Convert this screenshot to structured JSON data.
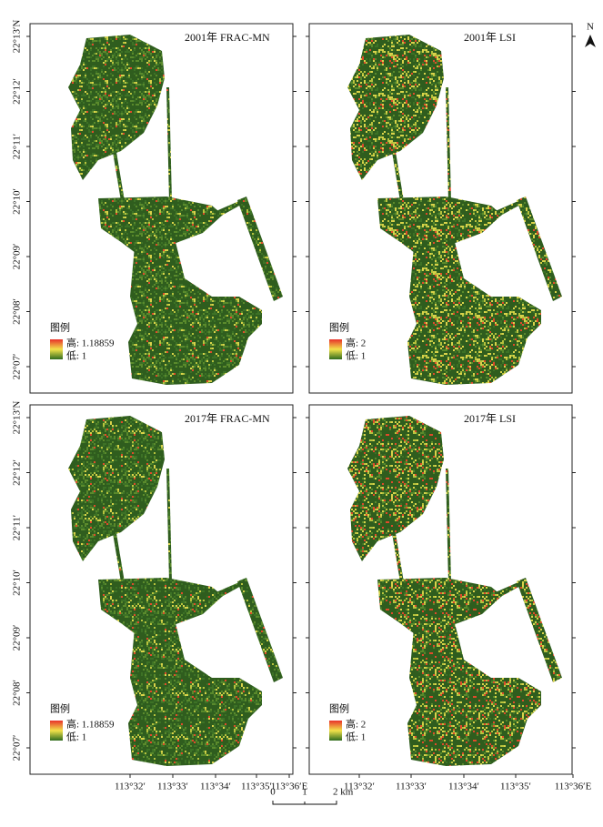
{
  "north_arrow": "N",
  "panels": [
    {
      "title": "2001年 FRAC-MN",
      "legend": {
        "title": "图例",
        "high": "高: 1.18859",
        "low": "低: 1"
      }
    },
    {
      "title": "2001年  LSI",
      "legend": {
        "title": "图例",
        "high": "高: 2",
        "low": "低: 1"
      }
    },
    {
      "title": "2017年 FRAC-MN",
      "legend": {
        "title": "图例",
        "high": "高: 1.18859",
        "low": "低: 1"
      }
    },
    {
      "title": "2017年 LSI",
      "legend": {
        "title": "图例",
        "high": "高: 2",
        "low": "低: 1"
      }
    }
  ],
  "latitude_labels": [
    "22°13′N",
    "22°12′",
    "22°11′",
    "22°10′",
    "22°09′",
    "22°08′",
    "22°07′"
  ],
  "longitude_labels": [
    "113°32′",
    "113°33′",
    "113°34′",
    "113°35′",
    "113°36′E"
  ],
  "scale_bar": [
    "0",
    "1",
    "2 km"
  ]
}
